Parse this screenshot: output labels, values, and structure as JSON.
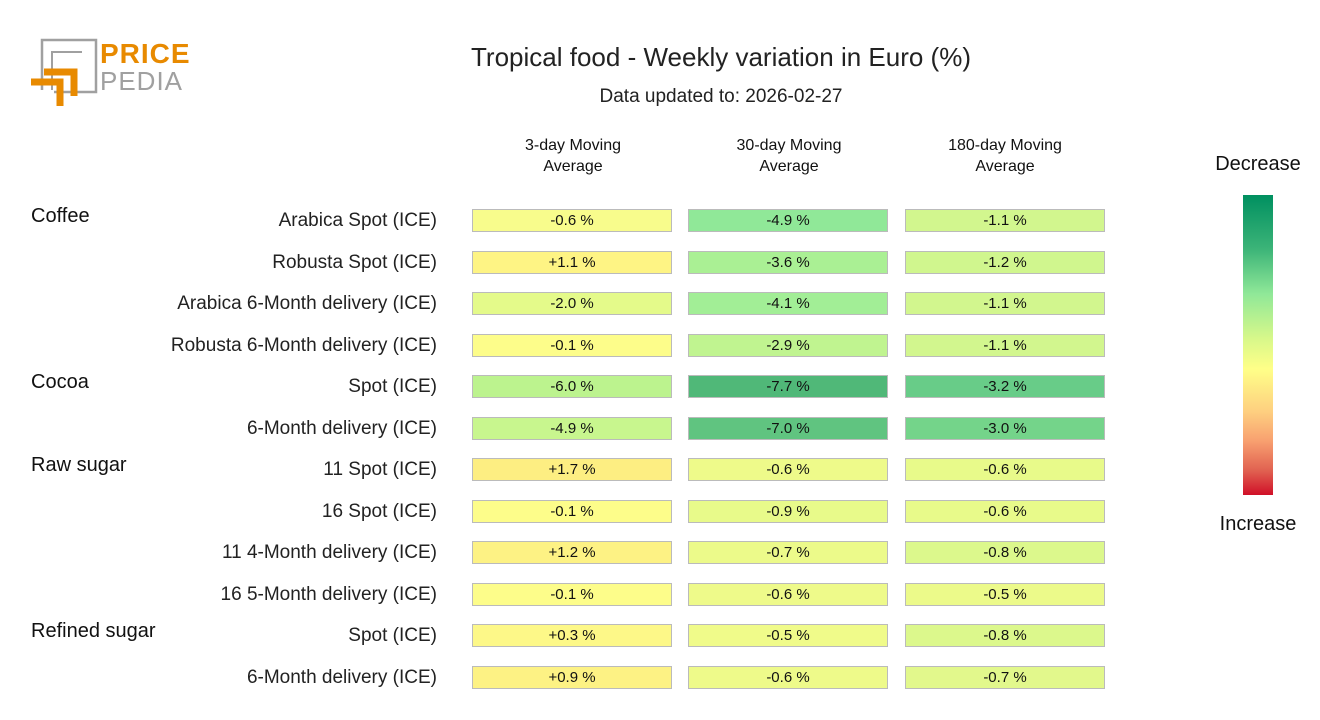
{
  "title": "Tropical food - Weekly variation in Euro (%)",
  "subtitle": "Data updated to: 2026-02-27",
  "logo": {
    "line1": "PRICE",
    "line2": "PEDIA",
    "accent": "#e88a00",
    "gray": "#a0a0a0"
  },
  "legend": {
    "top": "Decrease",
    "bottom": "Increase"
  },
  "chart_data": {
    "type": "heatmap",
    "title": "Tropical food - Weekly variation in Euro (%)",
    "columns": [
      "3-day Moving Average",
      "30-day Moving Average",
      "180-day Moving Average"
    ],
    "column_lines": [
      [
        "3-day Moving",
        "Average"
      ],
      [
        "30-day Moving",
        "Average"
      ],
      [
        "180-day Moving",
        "Average"
      ]
    ],
    "rows": [
      {
        "group": "Coffee",
        "label": "Arabica Spot (ICE)",
        "values": [
          "-0.6 %",
          "-4.9 %",
          "-1.1 %"
        ],
        "colors": [
          "#f8fc8c",
          "#90e898",
          "#d2f68e"
        ]
      },
      {
        "group": "",
        "label": "Robusta Spot (ICE)",
        "values": [
          "+1.1 %",
          "-3.6 %",
          "-1.2 %"
        ],
        "colors": [
          "#fef484",
          "#aaf094",
          "#d0f68e"
        ]
      },
      {
        "group": "",
        "label": "Arabica 6-Month delivery (ICE)",
        "values": [
          "-2.0 %",
          "-4.1 %",
          "-1.1 %"
        ],
        "colors": [
          "#e4fa8a",
          "#a2ee96",
          "#d2f68e"
        ]
      },
      {
        "group": "",
        "label": "Robusta 6-Month delivery (ICE)",
        "values": [
          "-0.1 %",
          "-2.9 %",
          "-1.1 %"
        ],
        "colors": [
          "#fdfd8a",
          "#c0f490",
          "#d2f68e"
        ]
      },
      {
        "group": "Cocoa",
        "label": "Spot (ICE)",
        "values": [
          "-6.0 %",
          "-7.7 %",
          "-3.2 %"
        ],
        "colors": [
          "#bcf38e",
          "#50b878",
          "#68cc88"
        ]
      },
      {
        "group": "",
        "label": "6-Month delivery (ICE)",
        "values": [
          "-4.9 %",
          "-7.0 %",
          "-3.0 %"
        ],
        "colors": [
          "#c8f68e",
          "#60c480",
          "#74d48a"
        ]
      },
      {
        "group": "Raw sugar",
        "label": "11 Spot (ICE)",
        "values": [
          "+1.7 %",
          "-0.6 %",
          "-0.6 %"
        ],
        "colors": [
          "#fdee82",
          "#eefa8a",
          "#e8fa8a"
        ]
      },
      {
        "group": "",
        "label": "16 Spot (ICE)",
        "values": [
          "-0.1 %",
          "-0.9 %",
          "-0.6 %"
        ],
        "colors": [
          "#fdfd8a",
          "#e8fa8a",
          "#e8fa8a"
        ]
      },
      {
        "group": "",
        "label": "11 4-Month delivery (ICE)",
        "values": [
          "+1.2 %",
          "-0.7 %",
          "-0.8 %"
        ],
        "colors": [
          "#fdf284",
          "#ecfa8a",
          "#dcf88c"
        ]
      },
      {
        "group": "",
        "label": "16 5-Month delivery (ICE)",
        "values": [
          "-0.1 %",
          "-0.6 %",
          "-0.5 %"
        ],
        "colors": [
          "#fdfd8a",
          "#eefa8a",
          "#ecfa8a"
        ]
      },
      {
        "group": "Refined sugar",
        "label": "Spot (ICE)",
        "values": [
          "+0.3 %",
          "-0.5 %",
          "-0.8 %"
        ],
        "colors": [
          "#fdf888",
          "#f0fb8a",
          "#dcf88c"
        ]
      },
      {
        "group": "",
        "label": "6-Month delivery (ICE)",
        "values": [
          "+0.9 %",
          "-0.6 %",
          "-0.7 %"
        ],
        "colors": [
          "#fdf284",
          "#eefa8a",
          "#e2f88c"
        ]
      }
    ],
    "colorscale": [
      "#009060",
      "#90e898",
      "#ffff88",
      "#f8a070",
      "#d01028"
    ]
  }
}
